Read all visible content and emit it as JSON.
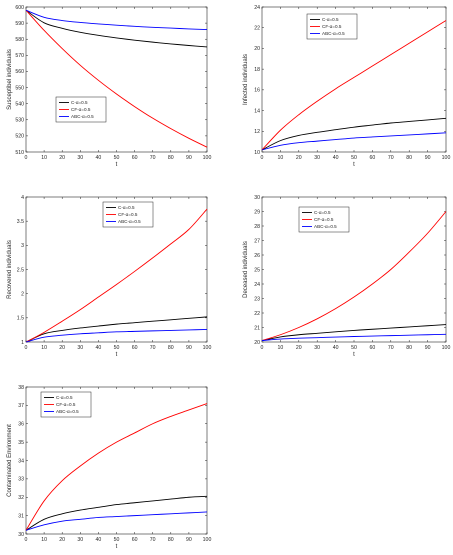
{
  "chart_data": [
    {
      "type": "line",
      "xlabel": "t",
      "ylabel": "Susceptibel individuals",
      "xlim": [
        0,
        100
      ],
      "ylim": [
        510,
        600
      ],
      "xticks": [
        0,
        10,
        20,
        30,
        40,
        50,
        60,
        70,
        80,
        90,
        100
      ],
      "yticks": [
        510,
        520,
        530,
        540,
        550,
        560,
        570,
        580,
        590,
        600
      ],
      "legend_position": "middle-left",
      "x": [
        0,
        10,
        20,
        30,
        40,
        50,
        60,
        70,
        80,
        90,
        100
      ],
      "series": [
        {
          "name": "C-α=0.5",
          "color": "#000000",
          "values": [
            598,
            590.2,
            586.8,
            584.3,
            582.4,
            580.8,
            579.4,
            578.2,
            577.1,
            576.1,
            575.2
          ]
        },
        {
          "name": "CF-α=0.5",
          "color": "#ff0000",
          "values": [
            598,
            585.5,
            574.2,
            563.8,
            554.5,
            546,
            538.2,
            531,
            524.5,
            518.5,
            513
          ]
        },
        {
          "name": "ABC-α=0.5",
          "color": "#0000ff",
          "values": [
            598,
            593.6,
            591.6,
            590.4,
            589.5,
            588.7,
            588,
            587.4,
            586.9,
            586.4,
            586
          ]
        }
      ]
    },
    {
      "type": "line",
      "xlabel": "t",
      "ylabel": "Infected individuals",
      "xlim": [
        0,
        100
      ],
      "ylim": [
        10,
        24
      ],
      "xticks": [
        0,
        10,
        20,
        30,
        40,
        50,
        60,
        70,
        80,
        90,
        100
      ],
      "yticks": [
        10,
        12,
        14,
        16,
        18,
        20,
        22,
        24
      ],
      "legend_position": "top-left",
      "x": [
        0,
        10,
        20,
        30,
        40,
        50,
        60,
        70,
        80,
        90,
        100
      ],
      "series": [
        {
          "name": "C-α=0.5",
          "color": "#000000",
          "values": [
            10.2,
            11.1,
            11.6,
            11.9,
            12.15,
            12.4,
            12.6,
            12.8,
            12.95,
            13.1,
            13.25
          ]
        },
        {
          "name": "CF-α=0.5",
          "color": "#ff0000",
          "values": [
            10.2,
            12.1,
            13.6,
            14.9,
            16.1,
            17.2,
            18.3,
            19.4,
            20.5,
            21.6,
            22.7
          ]
        },
        {
          "name": "ABC-α=0.5",
          "color": "#0000ff",
          "values": [
            10.2,
            10.65,
            10.9,
            11.05,
            11.2,
            11.35,
            11.45,
            11.55,
            11.65,
            11.75,
            11.85
          ]
        }
      ]
    },
    {
      "type": "line",
      "xlabel": "t",
      "ylabel": "Recovered individuals",
      "xlim": [
        0,
        100
      ],
      "ylim": [
        1,
        4
      ],
      "xticks": [
        0,
        10,
        20,
        30,
        40,
        50,
        60,
        70,
        80,
        90,
        100
      ],
      "yticks": [
        1,
        1.5,
        2,
        2.5,
        3,
        3.5,
        4
      ],
      "legend_position": "top-center",
      "x": [
        0,
        10,
        20,
        30,
        40,
        50,
        60,
        70,
        80,
        90,
        100
      ],
      "series": [
        {
          "name": "C-α=0.5",
          "color": "#000000",
          "values": [
            1.0,
            1.17,
            1.24,
            1.29,
            1.33,
            1.37,
            1.4,
            1.43,
            1.46,
            1.49,
            1.52
          ]
        },
        {
          "name": "CF-α=0.5",
          "color": "#ff0000",
          "values": [
            1.0,
            1.2,
            1.43,
            1.67,
            1.93,
            2.19,
            2.46,
            2.74,
            3.03,
            3.33,
            3.75
          ]
        },
        {
          "name": "ABC-α=0.5",
          "color": "#0000ff",
          "values": [
            1.0,
            1.1,
            1.14,
            1.17,
            1.19,
            1.21,
            1.22,
            1.23,
            1.24,
            1.25,
            1.26
          ]
        }
      ]
    },
    {
      "type": "line",
      "xlabel": "t",
      "ylabel": "Deceased individuals",
      "xlim": [
        0,
        100
      ],
      "ylim": [
        20,
        30
      ],
      "xticks": [
        0,
        10,
        20,
        30,
        40,
        50,
        60,
        70,
        80,
        90,
        100
      ],
      "yticks": [
        20,
        21,
        22,
        23,
        24,
        25,
        26,
        27,
        28,
        29,
        30
      ],
      "legend_position": "top-left",
      "x": [
        0,
        10,
        20,
        30,
        40,
        50,
        60,
        70,
        80,
        90,
        100
      ],
      "series": [
        {
          "name": "C-α=0.5",
          "color": "#000000",
          "values": [
            20.1,
            20.35,
            20.5,
            20.6,
            20.7,
            20.8,
            20.88,
            20.96,
            21.04,
            21.12,
            21.2
          ]
        },
        {
          "name": "CF-α=0.5",
          "color": "#ff0000",
          "values": [
            20.1,
            20.5,
            21.0,
            21.6,
            22.3,
            23.1,
            24.0,
            25.0,
            26.2,
            27.5,
            29.0
          ]
        },
        {
          "name": "ABC-α=0.5",
          "color": "#0000ff",
          "values": [
            20.1,
            20.2,
            20.26,
            20.3,
            20.34,
            20.38,
            20.41,
            20.44,
            20.47,
            20.5,
            20.53
          ]
        }
      ]
    },
    {
      "type": "line",
      "xlabel": "t",
      "ylabel": "Contaminated Environment",
      "xlim": [
        0,
        100
      ],
      "ylim": [
        30,
        38
      ],
      "xticks": [
        0,
        10,
        20,
        30,
        40,
        50,
        60,
        70,
        80,
        90,
        100
      ],
      "yticks": [
        30,
        31,
        32,
        33,
        34,
        35,
        36,
        37,
        38
      ],
      "legend_position": "top-left",
      "x": [
        0,
        10,
        20,
        30,
        40,
        50,
        60,
        70,
        80,
        90,
        100
      ],
      "series": [
        {
          "name": "C-α=0.5",
          "color": "#000000",
          "values": [
            30.2,
            30.8,
            31.1,
            31.3,
            31.45,
            31.6,
            31.7,
            31.8,
            31.9,
            32.0,
            32.05
          ]
        },
        {
          "name": "CF-α=0.5",
          "color": "#ff0000",
          "values": [
            30.2,
            31.8,
            32.9,
            33.7,
            34.4,
            35.0,
            35.5,
            36.0,
            36.4,
            36.75,
            37.1
          ]
        },
        {
          "name": "ABC-α=0.5",
          "color": "#0000ff",
          "values": [
            30.2,
            30.5,
            30.7,
            30.8,
            30.9,
            30.95,
            31.0,
            31.05,
            31.1,
            31.15,
            31.2
          ]
        }
      ]
    }
  ]
}
